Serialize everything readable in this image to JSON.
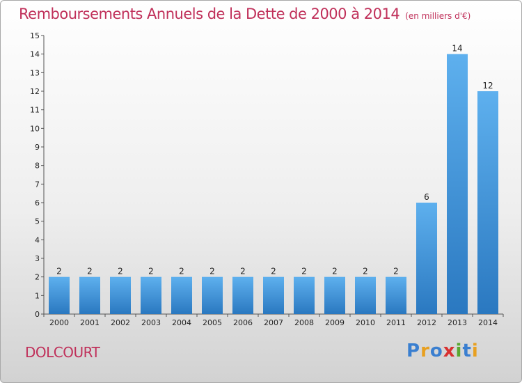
{
  "chart_data": {
    "type": "bar",
    "title": "Remboursements Annuels de la Dette de 2000 à 2014",
    "unit_note": "(en milliers d'€)",
    "categories": [
      "2000",
      "2001",
      "2002",
      "2003",
      "2004",
      "2005",
      "2006",
      "2007",
      "2008",
      "2009",
      "2010",
      "2011",
      "2012",
      "2013",
      "2014"
    ],
    "values": [
      2,
      2,
      2,
      2,
      2,
      2,
      2,
      2,
      2,
      2,
      2,
      2,
      6,
      14,
      12
    ],
    "ylim": [
      0,
      15
    ],
    "yticks": [
      0,
      1,
      2,
      3,
      4,
      5,
      6,
      7,
      8,
      9,
      10,
      11,
      12,
      13,
      14,
      15
    ],
    "bar_color": "#3a8fd8",
    "grid": false,
    "legend": "none"
  },
  "commune": "DOLCOURT",
  "logo": {
    "letters": [
      "P",
      "r",
      "o",
      "x",
      "i",
      "t",
      "i"
    ],
    "colors": [
      "#3a7fd0",
      "#e8a020",
      "#3a7fd0",
      "#d83030",
      "#5aa830",
      "#3a7fd0",
      "#e8a020"
    ]
  },
  "colors": {
    "title": "#c0305a",
    "axis": "#555555"
  }
}
